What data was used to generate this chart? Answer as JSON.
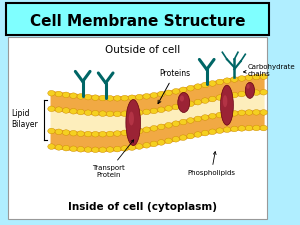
{
  "title": "Cell Membrane Structure",
  "title_bg": "#7fffff",
  "title_border": "#000000",
  "bg_color": "#b0eeff",
  "diagram_bg": "#ffffff",
  "label_outside": "Outside of cell",
  "label_inside": "Inside of cell (cytoplasm)",
  "label_lipid": "Lipid\nBilayer",
  "label_proteins": "Proteins",
  "label_transport": "Transport\nProtein",
  "label_phospholipids": "Phospholipids",
  "label_carbohydrate": "Carbohydrate\nchains",
  "yellow_head": "#f5d020",
  "yellow_body": "#f0a030",
  "yellow_dark": "#cc8800",
  "protein_color": "#9b2335",
  "teal_color": "#006666",
  "orange_mid": "#f5a020"
}
